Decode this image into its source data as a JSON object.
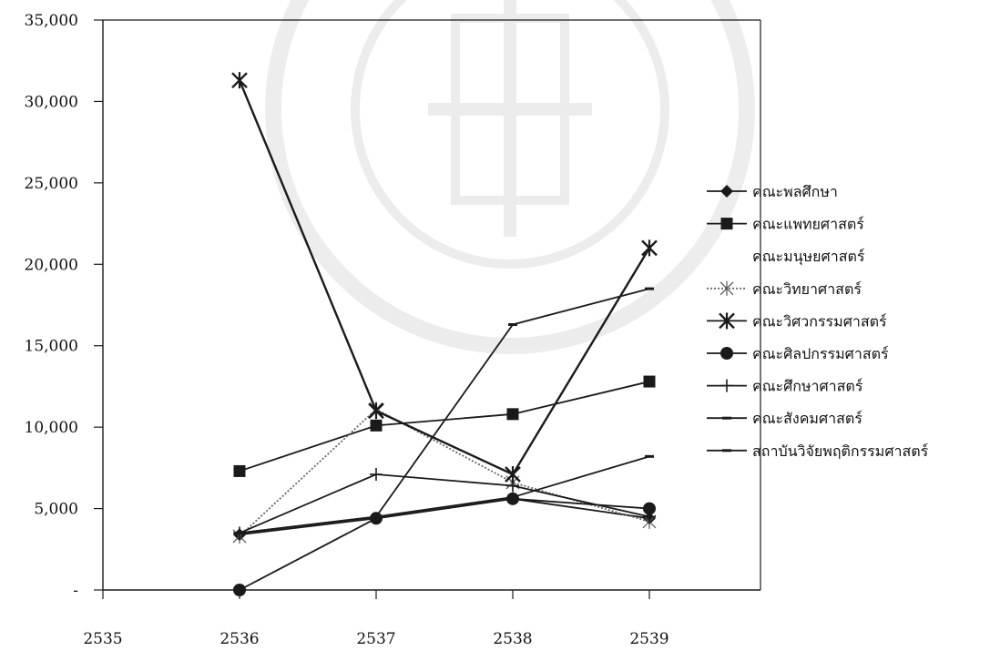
{
  "chart_data": {
    "type": "line",
    "title": "",
    "xlabel": "",
    "ylabel": "",
    "x": [
      2535,
      2536,
      2537,
      2538,
      2539
    ],
    "x_tick_labels": [
      "2535",
      "2536",
      "2537",
      "2538",
      "2539"
    ],
    "ylim": [
      0,
      35000
    ],
    "y_ticks": [
      0,
      5000,
      10000,
      15000,
      20000,
      25000,
      30000,
      35000
    ],
    "y_tick_labels": [
      "-",
      "5,000",
      "10,000",
      "15,000",
      "20,000",
      "25,000",
      "30,000",
      "35,000"
    ],
    "grid": false,
    "legend_position": "right",
    "series": [
      {
        "name": "คณะพลศึกษา",
        "marker": "diamond",
        "line_style": "solid",
        "values": [
          null,
          3400,
          4400,
          5600,
          4400
        ]
      },
      {
        "name": "คณะแพทยศาสตร์",
        "marker": "square",
        "line_style": "solid",
        "values": [
          null,
          7300,
          10100,
          10800,
          12800
        ]
      },
      {
        "name": "คณะมนุษยศาสตร์",
        "marker": "none",
        "line_style": "none",
        "values": [
          null,
          null,
          null,
          null,
          null
        ]
      },
      {
        "name": "คณะวิทยาศาสตร์",
        "marker": "star",
        "line_style": "dotted",
        "values": [
          null,
          3300,
          11100,
          6600,
          4200
        ]
      },
      {
        "name": "คณะวิศวกรรมศาสตร์",
        "marker": "x-star",
        "line_style": "solid",
        "values": [
          null,
          31300,
          11000,
          7100,
          21000
        ]
      },
      {
        "name": "คณะศิลปกรรมศาสตร์",
        "marker": "circle",
        "line_style": "solid",
        "values": [
          null,
          0,
          4400,
          5600,
          5000
        ]
      },
      {
        "name": "คณะศึกษาศาสตร์",
        "marker": "plus",
        "line_style": "solid",
        "values": [
          null,
          3500,
          7100,
          6400,
          4500
        ]
      },
      {
        "name": "คณะสังคมศาสตร์",
        "marker": "dash",
        "line_style": "solid",
        "values": [
          null,
          3500,
          4500,
          16300,
          18500
        ]
      },
      {
        "name": "สถาบันวิจัยพฤติกรรมศาสตร์",
        "marker": "dash",
        "line_style": "solid",
        "values": [
          null,
          3500,
          4500,
          5700,
          8200
        ]
      }
    ]
  },
  "colors": {
    "line": "#1a1a1a",
    "watermark": "#000000",
    "background": "#ffffff"
  }
}
